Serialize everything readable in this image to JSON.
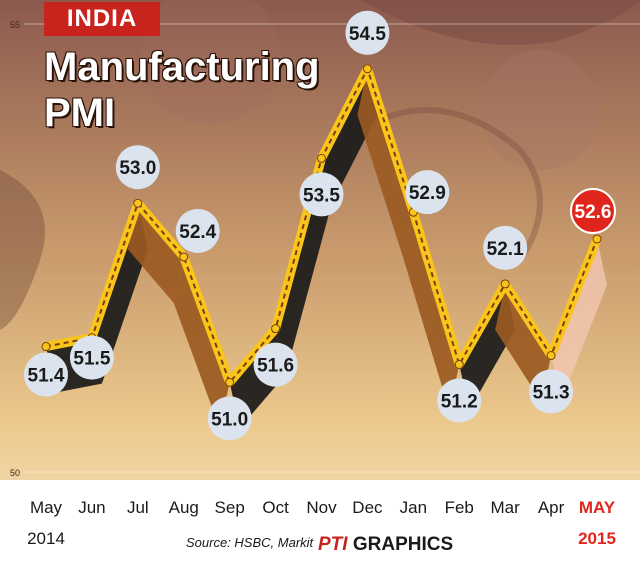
{
  "header": {
    "tag": "INDIA",
    "title_line1": "Manufacturing",
    "title_line2": "PMI"
  },
  "footer": {
    "source": "Source: HSBC, Markit",
    "credit_brand": "PTI",
    "credit_text": "GRAPHICS"
  },
  "colors": {
    "line": "#f9c51a",
    "dash": "#7a3e12",
    "bubble": "#dbe4ee",
    "highlight": "#e0261c",
    "brown": "#9b5a22",
    "dark": "#1a1a1a"
  },
  "chart_data": {
    "type": "line",
    "title": "Manufacturing PMI",
    "ylim": [
      50,
      55
    ],
    "yticks": [
      "50",
      "55"
    ],
    "categories": [
      "May",
      "Jun",
      "Jul",
      "Aug",
      "Sep",
      "Oct",
      "Nov",
      "Dec",
      "Jan",
      "Feb",
      "Mar",
      "Apr",
      "MAY"
    ],
    "year_labels": [
      "2014",
      "2015"
    ],
    "values": [
      51.4,
      51.5,
      53.0,
      52.4,
      51.0,
      51.6,
      53.5,
      54.5,
      52.9,
      51.2,
      52.1,
      51.3,
      52.6
    ],
    "labels": [
      "51.4",
      "51.5",
      "53.0",
      "52.4",
      "51.0",
      "51.6",
      "53.5",
      "54.5",
      "52.9",
      "51.2",
      "52.1",
      "51.3",
      "52.6"
    ],
    "highlight_index": 12
  }
}
